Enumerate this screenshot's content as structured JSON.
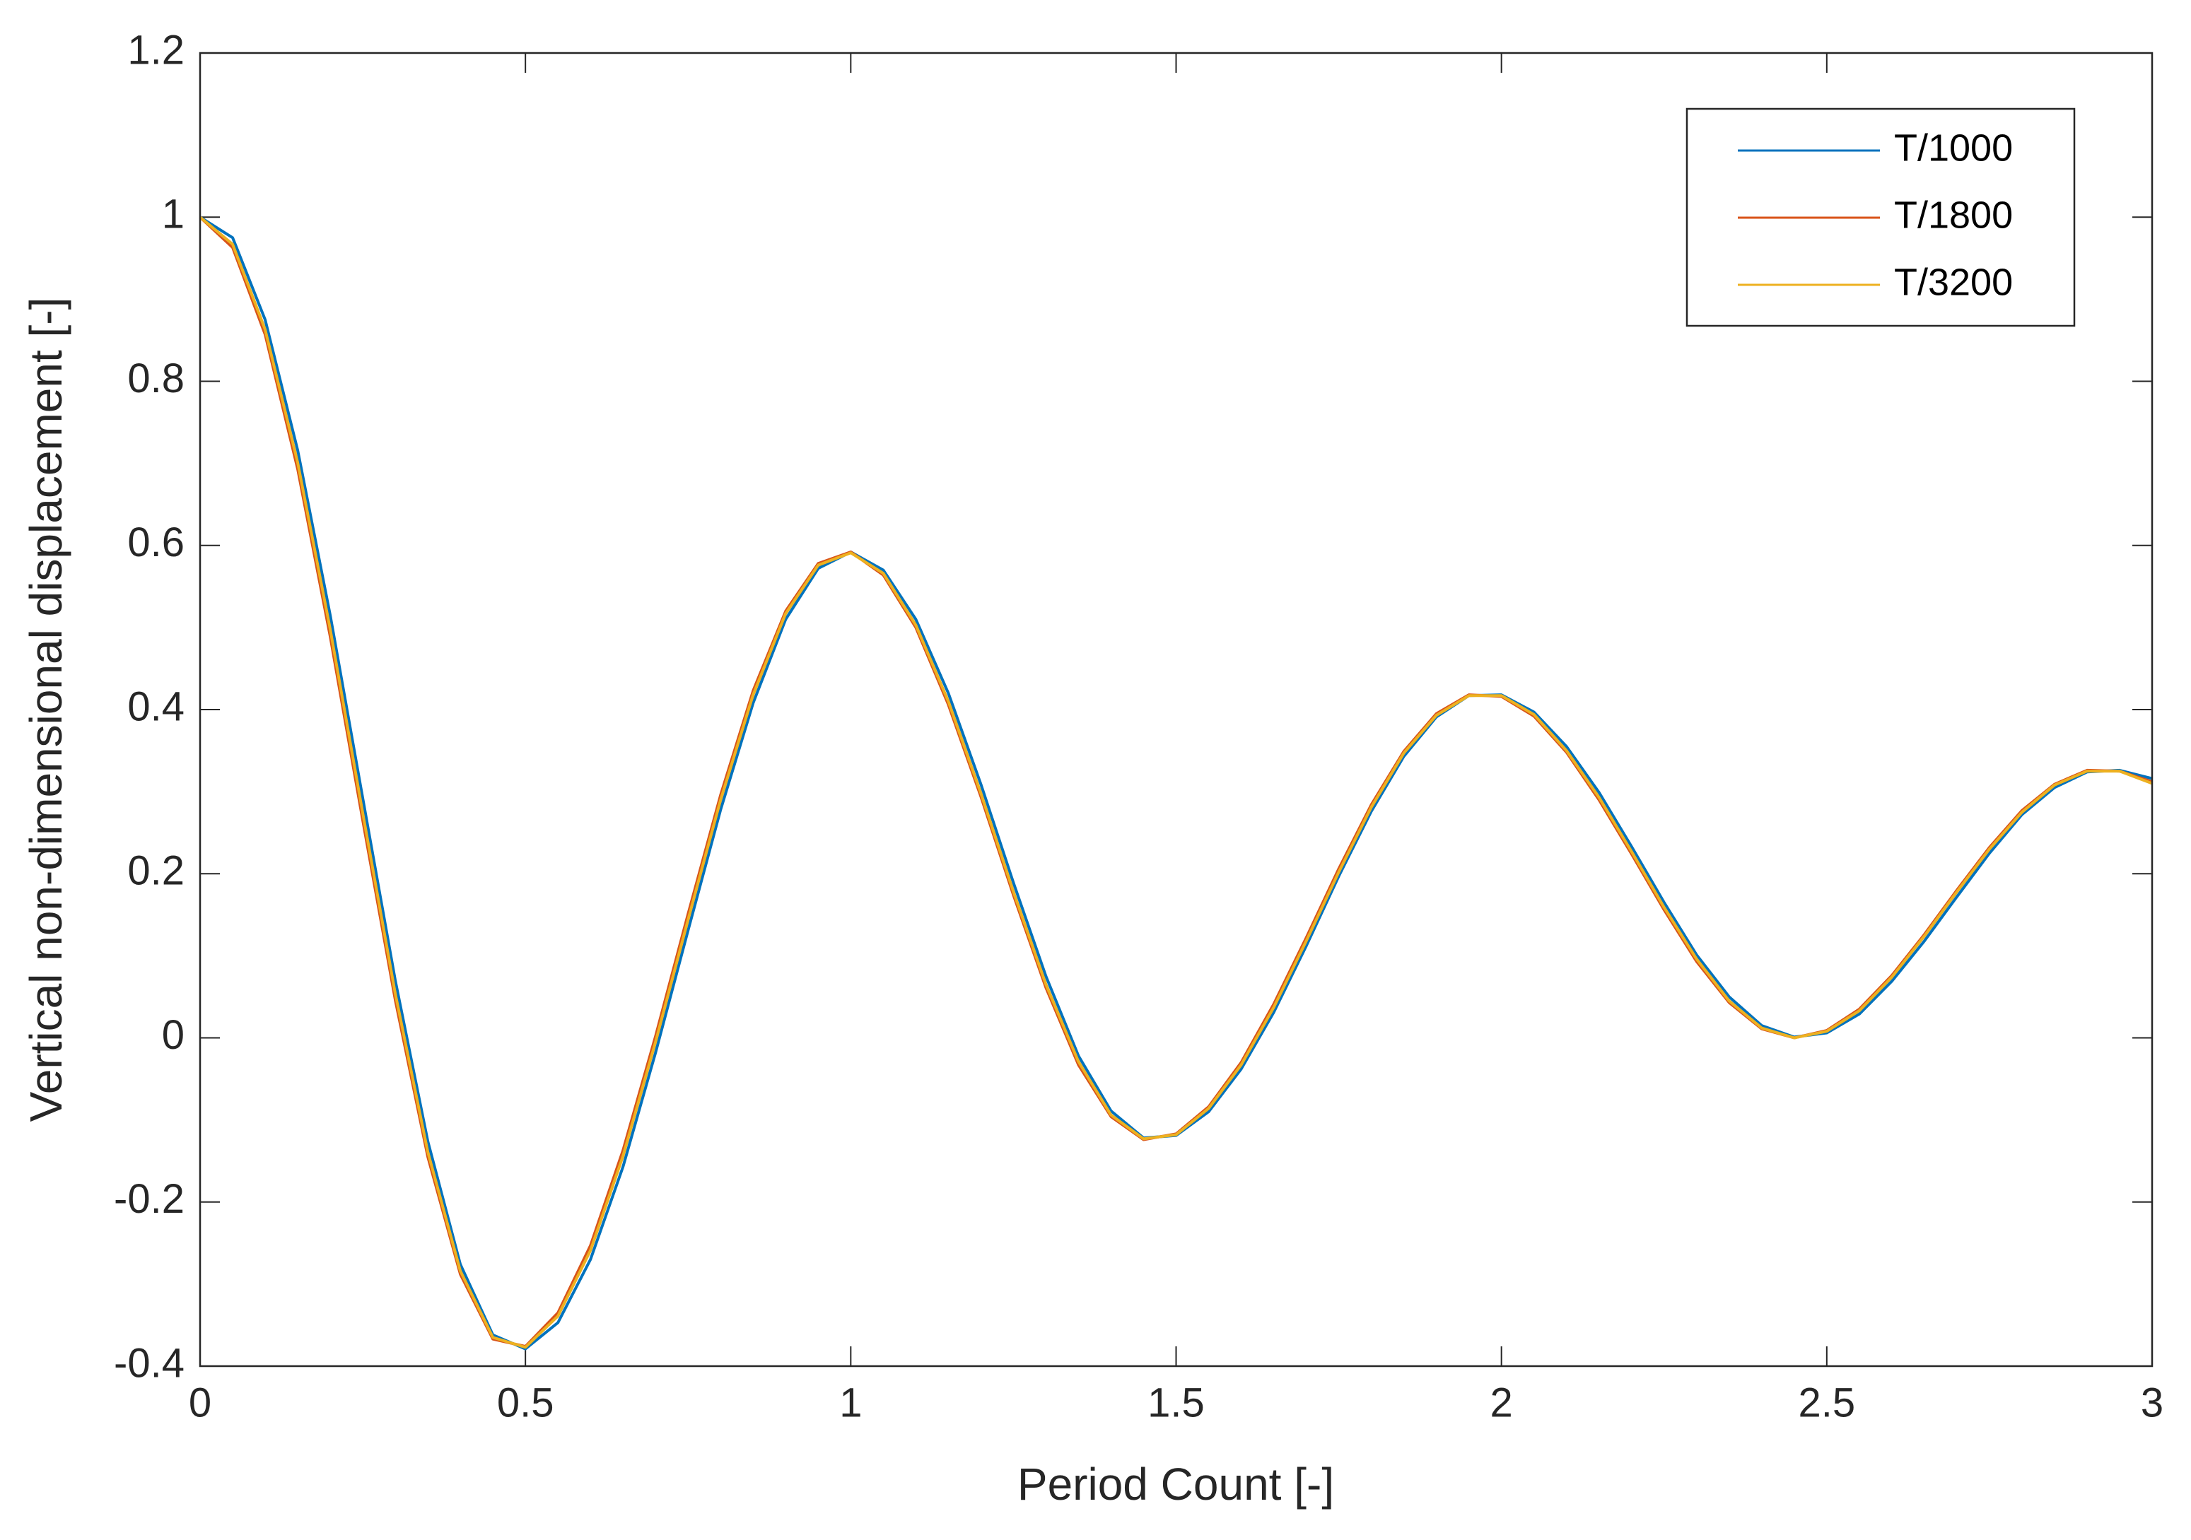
{
  "chart_data": {
    "type": "line",
    "x_label": "Period Count [-]",
    "y_label": "Vertical non-dimensional displacement [-]",
    "x": [
      0,
      0.05,
      0.1,
      0.15,
      0.2,
      0.25,
      0.3,
      0.35,
      0.4,
      0.45,
      0.5,
      0.55,
      0.6,
      0.65,
      0.7,
      0.75,
      0.8,
      0.85,
      0.9,
      0.95,
      1,
      1.05,
      1.1,
      1.15,
      1.2,
      1.25,
      1.3,
      1.35,
      1.4,
      1.45,
      1.5,
      1.55,
      1.6,
      1.65,
      1.7,
      1.75,
      1.8,
      1.85,
      1.9,
      1.95,
      2,
      2.05,
      2.1,
      2.15,
      2.2,
      2.25,
      2.3,
      2.35,
      2.4,
      2.45,
      2.5,
      2.55,
      2.6,
      2.65,
      2.7,
      2.75,
      2.8,
      2.85,
      2.9,
      2.95,
      3
    ],
    "series": [
      {
        "name": "T/1000",
        "color": "#0072BD",
        "values": [
          1,
          0.975,
          0.875,
          0.716,
          0.515,
          0.292,
          0.07,
          -0.126,
          -0.276,
          -0.362,
          -0.379,
          -0.347,
          -0.27,
          -0.157,
          -0.018,
          0.131,
          0.278,
          0.408,
          0.51,
          0.572,
          0.592,
          0.57,
          0.51,
          0.42,
          0.309,
          0.189,
          0.075,
          -0.022,
          -0.089,
          -0.122,
          -0.119,
          -0.09,
          -0.038,
          0.031,
          0.112,
          0.197,
          0.276,
          0.343,
          0.391,
          0.417,
          0.418,
          0.397,
          0.355,
          0.299,
          0.233,
          0.165,
          0.101,
          0.05,
          0.015,
          0.001,
          0.006,
          0.029,
          0.069,
          0.118,
          0.172,
          0.225,
          0.272,
          0.305,
          0.324,
          0.326,
          0.316
        ]
      },
      {
        "name": "T/1800",
        "color": "#D95319",
        "values": [
          1,
          0.963,
          0.857,
          0.693,
          0.489,
          0.265,
          0.046,
          -0.145,
          -0.288,
          -0.367,
          -0.376,
          -0.335,
          -0.253,
          -0.137,
          0.002,
          0.151,
          0.296,
          0.423,
          0.52,
          0.578,
          0.592,
          0.564,
          0.5,
          0.406,
          0.294,
          0.174,
          0.061,
          -0.033,
          -0.096,
          -0.124,
          -0.117,
          -0.084,
          -0.03,
          0.041,
          0.122,
          0.206,
          0.284,
          0.349,
          0.395,
          0.418,
          0.416,
          0.392,
          0.348,
          0.29,
          0.224,
          0.156,
          0.093,
          0.043,
          0.011,
          0,
          0.009,
          0.035,
          0.076,
          0.126,
          0.18,
          0.232,
          0.277,
          0.309,
          0.326,
          0.325,
          0.312
        ]
      },
      {
        "name": "T/3200",
        "color": "#EDB120",
        "values": [
          1,
          0.967,
          0.863,
          0.701,
          0.498,
          0.274,
          0.054,
          -0.139,
          -0.284,
          -0.365,
          -0.377,
          -0.339,
          -0.259,
          -0.144,
          -0.005,
          0.144,
          0.29,
          0.418,
          0.517,
          0.576,
          0.591,
          0.566,
          0.503,
          0.41,
          0.298,
          0.178,
          0.065,
          -0.029,
          -0.094,
          -0.123,
          -0.118,
          -0.086,
          -0.033,
          0.037,
          0.118,
          0.202,
          0.281,
          0.347,
          0.393,
          0.417,
          0.417,
          0.394,
          0.35,
          0.293,
          0.227,
          0.159,
          0.096,
          0.045,
          0.012,
          0,
          0.008,
          0.033,
          0.074,
          0.124,
          0.178,
          0.23,
          0.275,
          0.308,
          0.325,
          0.325,
          0.31
        ]
      }
    ],
    "xlim": [
      0,
      3
    ],
    "ylim": [
      -0.4,
      1.2
    ],
    "xticks": [
      0,
      0.5,
      1,
      1.5,
      2,
      2.5,
      3
    ],
    "yticks": [
      -0.4,
      -0.2,
      0,
      0.2,
      0.4,
      0.6,
      0.8,
      1,
      1.2
    ],
    "grid": false,
    "legend": "northeast"
  }
}
